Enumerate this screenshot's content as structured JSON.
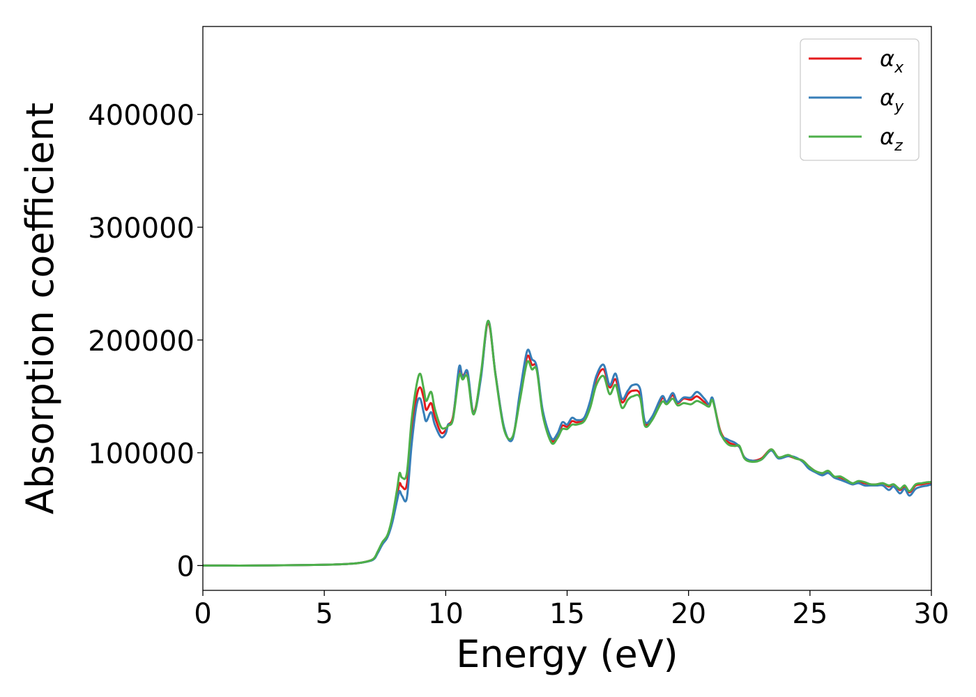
{
  "chart_data": {
    "type": "line",
    "title": "",
    "xlabel": "Energy (eV)",
    "ylabel": "Absorption coefficient",
    "xlim": [
      0,
      30
    ],
    "ylim": [
      -22000,
      478000
    ],
    "xticks": [
      0,
      5,
      10,
      15,
      20,
      25,
      30
    ],
    "xtick_labels": [
      "0",
      "5",
      "10",
      "15",
      "20",
      "25",
      "30"
    ],
    "yticks": [
      0,
      100000,
      200000,
      300000,
      400000
    ],
    "ytick_labels": [
      "0",
      "100000",
      "200000",
      "300000",
      "400000"
    ],
    "grid": false,
    "legend_position": "top-right",
    "x": [
      0,
      1,
      2,
      3,
      4,
      5,
      5.5,
      6,
      6.5,
      7,
      7.2,
      7.4,
      7.6,
      7.8,
      8,
      8.1,
      8.2,
      8.4,
      8.6,
      8.8,
      8.95,
      9.1,
      9.2,
      9.4,
      9.55,
      9.8,
      10.0,
      10.1,
      10.3,
      10.55,
      10.7,
      10.9,
      11.15,
      11.45,
      11.75,
      12.05,
      12.4,
      12.75,
      13.05,
      13.35,
      13.55,
      13.75,
      14.0,
      14.35,
      14.6,
      14.8,
      15.0,
      15.2,
      15.4,
      15.7,
      15.95,
      16.2,
      16.5,
      16.75,
      17.0,
      17.25,
      17.5,
      17.7,
      18.0,
      18.2,
      18.5,
      18.9,
      19.1,
      19.35,
      19.55,
      19.8,
      20.1,
      20.35,
      20.65,
      20.85,
      21.0,
      21.3,
      21.6,
      21.9,
      22.1,
      22.3,
      22.6,
      23.0,
      23.4,
      23.7,
      24.1,
      24.4,
      24.7,
      24.95,
      25.2,
      25.5,
      25.75,
      26.0,
      26.25,
      26.5,
      26.75,
      27.0,
      27.25,
      27.5,
      27.75,
      28.0,
      28.25,
      28.45,
      28.7,
      28.9,
      29.1,
      29.35,
      29.6,
      29.85,
      30
    ],
    "series": [
      {
        "name": "αx",
        "color": "#e41a1c",
        "values": [
          0,
          0,
          0,
          200,
          400,
          700,
          1000,
          1500,
          2500,
          5500,
          12000,
          20000,
          26000,
          40000,
          62000,
          73000,
          70000,
          72000,
          120000,
          150000,
          158000,
          148000,
          138000,
          144000,
          132000,
          118000,
          120000,
          125000,
          132000,
          172000,
          168000,
          170000,
          136000,
          168000,
          215000,
          170000,
          122000,
          113000,
          150000,
          185000,
          178000,
          175000,
          135000,
          111000,
          115000,
          124000,
          123000,
          128000,
          127000,
          130000,
          143000,
          165000,
          174000,
          158000,
          165000,
          145000,
          152000,
          155000,
          152000,
          126000,
          130000,
          148000,
          145000,
          151000,
          144000,
          148000,
          147000,
          150000,
          145000,
          143000,
          147000,
          120000,
          110000,
          107000,
          105000,
          96000,
          93000,
          95000,
          103000,
          96000,
          97000,
          95000,
          93000,
          88000,
          84000,
          81000,
          83000,
          78000,
          78000,
          75000,
          72000,
          74000,
          73000,
          72000,
          72000,
          73000,
          70000,
          72000,
          67000,
          70000,
          65000,
          71000,
          72000,
          73000,
          73000
        ]
      },
      {
        "name": "αy",
        "color": "#377eb8",
        "values": [
          0,
          0,
          0,
          200,
          400,
          700,
          1000,
          1500,
          2500,
          5000,
          11000,
          19000,
          25000,
          38000,
          58000,
          66000,
          62000,
          60000,
          108000,
          142000,
          148000,
          135000,
          128000,
          136000,
          125000,
          114000,
          117000,
          125000,
          130000,
          176000,
          166000,
          172000,
          135000,
          166000,
          217000,
          170000,
          123000,
          112000,
          153000,
          190000,
          183000,
          176000,
          137000,
          113000,
          117000,
          127000,
          125000,
          131000,
          129000,
          131000,
          146000,
          168000,
          178000,
          160000,
          170000,
          148000,
          155000,
          160000,
          157000,
          128000,
          132000,
          150000,
          145000,
          153000,
          145000,
          149000,
          149000,
          154000,
          148000,
          143000,
          148000,
          118000,
          112000,
          109000,
          105000,
          96000,
          93000,
          94000,
          102000,
          95000,
          97000,
          96000,
          92000,
          86000,
          83000,
          80000,
          82000,
          78000,
          76000,
          74000,
          72000,
          73000,
          71000,
          71000,
          71000,
          71000,
          67000,
          70000,
          64000,
          68000,
          62000,
          68000,
          70000,
          71000,
          72000
        ]
      },
      {
        "name": "αz",
        "color": "#4daf4a",
        "values": [
          0,
          0,
          0,
          200,
          400,
          700,
          1000,
          1500,
          2500,
          5500,
          12500,
          21000,
          27000,
          43000,
          68000,
          82000,
          78000,
          82000,
          130000,
          160000,
          170000,
          156000,
          146000,
          154000,
          139000,
          123000,
          122000,
          124000,
          130000,
          168000,
          165000,
          167000,
          134000,
          170000,
          217000,
          169000,
          121000,
          114000,
          146000,
          180000,
          174000,
          173000,
          133000,
          109000,
          113000,
          121000,
          121000,
          125000,
          125000,
          128000,
          140000,
          160000,
          168000,
          152000,
          160000,
          140000,
          147000,
          150000,
          149000,
          124000,
          129000,
          145000,
          143000,
          148000,
          142000,
          144000,
          143000,
          146000,
          143000,
          141000,
          146000,
          119000,
          108000,
          106000,
          106000,
          95000,
          92000,
          94000,
          103000,
          96000,
          98000,
          95000,
          93000,
          88000,
          84000,
          82000,
          84000,
          79000,
          79000,
          76000,
          73000,
          75000,
          74000,
          72000,
          72000,
          73000,
          71000,
          72000,
          68000,
          71000,
          66000,
          72000,
          73000,
          74000,
          74000
        ]
      }
    ]
  }
}
